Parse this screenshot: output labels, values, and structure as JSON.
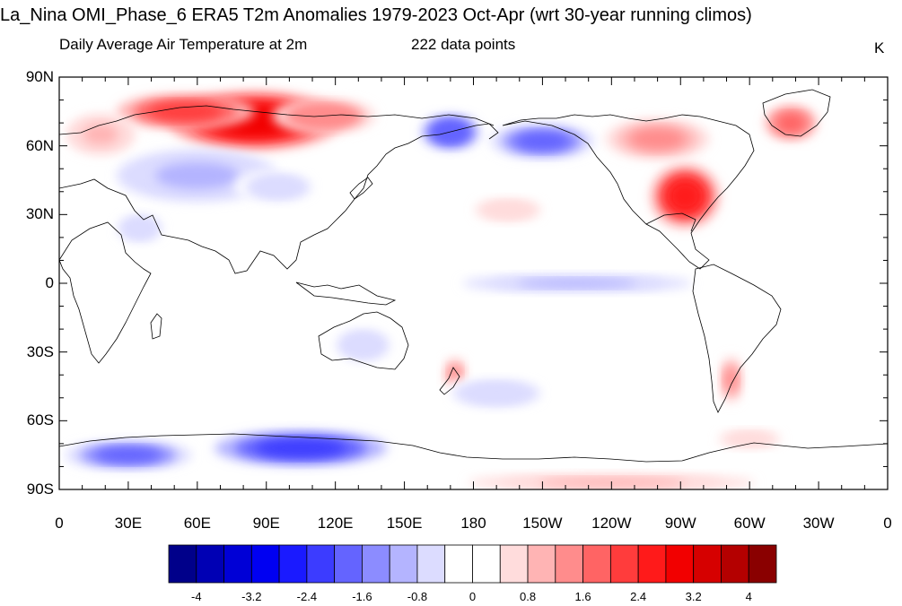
{
  "title": "La_Nina OMI_Phase_6 ERA5 T2m Anomalies 1979-2023 Oct-Apr (wrt 30-year running climos)",
  "subtitle_left": "Daily Average Air Temperature at 2m",
  "subtitle_center": "222 data points",
  "units": "K",
  "lat_ticks": [
    {
      "lat": 90,
      "label": "90N"
    },
    {
      "lat": 60,
      "label": "60N"
    },
    {
      "lat": 30,
      "label": "30N"
    },
    {
      "lat": 0,
      "label": "0"
    },
    {
      "lat": -30,
      "label": "30S"
    },
    {
      "lat": -60,
      "label": "60S"
    },
    {
      "lat": -90,
      "label": "90S"
    }
  ],
  "lon_ticks": [
    {
      "lon": 0,
      "label": "0"
    },
    {
      "lon": 30,
      "label": "30E"
    },
    {
      "lon": 60,
      "label": "60E"
    },
    {
      "lon": 90,
      "label": "90E"
    },
    {
      "lon": 120,
      "label": "120E"
    },
    {
      "lon": 150,
      "label": "150E"
    },
    {
      "lon": 180,
      "label": "180"
    },
    {
      "lon": 210,
      "label": "150W"
    },
    {
      "lon": 240,
      "label": "120W"
    },
    {
      "lon": 270,
      "label": "90W"
    },
    {
      "lon": 300,
      "label": "60W"
    },
    {
      "lon": 330,
      "label": "30W"
    },
    {
      "lon": 360,
      "label": "0"
    }
  ],
  "colorbar": {
    "colors": [
      "#00008a",
      "#0000b4",
      "#0000d6",
      "#0000f2",
      "#1a1aff",
      "#3c3cff",
      "#6464ff",
      "#8c8cff",
      "#b4b4ff",
      "#dcdcff",
      "#ffffff",
      "#ffffff",
      "#ffdcdc",
      "#ffb4b4",
      "#ff8c8c",
      "#ff6464",
      "#ff3c3c",
      "#ff1a1a",
      "#f20000",
      "#d60000",
      "#b40000",
      "#8a0000"
    ],
    "labels": [
      "-4",
      "-3.2",
      "-2.4",
      "-1.6",
      "-0.8",
      "0",
      "0.8",
      "1.6",
      "2.4",
      "3.2",
      "4"
    ]
  },
  "anomalies": [
    {
      "name": "Siberia warm",
      "lon": 85,
      "lat": 71,
      "rx": 30,
      "ry": 10,
      "value": 3.0
    },
    {
      "name": "Arctic Russia warm",
      "lon": 55,
      "lat": 75,
      "rx": 24,
      "ry": 6,
      "value": 2.2
    },
    {
      "name": "East Siberia warm",
      "lon": 115,
      "lat": 73,
      "rx": 18,
      "ry": 6,
      "value": 1.6
    },
    {
      "name": "Scandinavia warm",
      "lon": 18,
      "lat": 65,
      "rx": 12,
      "ry": 7,
      "value": 1.0
    },
    {
      "name": "Kazakhstan cool",
      "lon": 60,
      "lat": 47,
      "rx": 28,
      "ry": 9,
      "value": -1.0
    },
    {
      "name": "Central Asia cool",
      "lon": 95,
      "lat": 42,
      "rx": 15,
      "ry": 6,
      "value": -0.8
    },
    {
      "name": "Arabia cool",
      "lon": 35,
      "lat": 24,
      "rx": 10,
      "ry": 6,
      "value": -0.8
    },
    {
      "name": "Bering cool",
      "lon": 170,
      "lat": 66,
      "rx": 10,
      "ry": 6,
      "value": -2.0
    },
    {
      "name": "Alaska cool",
      "lon": 210,
      "lat": 62,
      "rx": 18,
      "ry": 6,
      "value": -1.6
    },
    {
      "name": "Eastern US warm",
      "lon": 272,
      "lat": 38,
      "rx": 12,
      "ry": 11,
      "value": 2.5
    },
    {
      "name": "Canada warm",
      "lon": 260,
      "lat": 63,
      "rx": 18,
      "ry": 7,
      "value": 1.2
    },
    {
      "name": "Greenland warm",
      "lon": 318,
      "lat": 70,
      "rx": 9,
      "ry": 6,
      "value": 1.8
    },
    {
      "name": "Equatorial Pacific cool",
      "lon": 225,
      "lat": 0,
      "rx": 40,
      "ry": 3,
      "value": -0.9
    },
    {
      "name": "Subtropical Pacific warm",
      "lon": 195,
      "lat": 32,
      "rx": 15,
      "ry": 5,
      "value": 0.8
    },
    {
      "name": "Australia cool",
      "lon": 132,
      "lat": -27,
      "rx": 12,
      "ry": 7,
      "value": -0.7
    },
    {
      "name": "New Zealand warm",
      "lon": 172,
      "lat": -40,
      "rx": 4,
      "ry": 6,
      "value": 1.2
    },
    {
      "name": "Patagonia warm",
      "lon": 292,
      "lat": -42,
      "rx": 4,
      "ry": 8,
      "value": 1.4
    },
    {
      "name": "South Pacific cool",
      "lon": 190,
      "lat": -48,
      "rx": 20,
      "ry": 6,
      "value": -0.6
    },
    {
      "name": "East Antarctica cool",
      "lon": 105,
      "lat": -72,
      "rx": 30,
      "ry": 6,
      "value": -2.2
    },
    {
      "name": "Queen Maud Land cool",
      "lon": 30,
      "lat": -75,
      "rx": 22,
      "ry": 5,
      "value": -1.6
    },
    {
      "name": "Southern Ocean warm",
      "lon": 240,
      "lat": -87,
      "rx": 50,
      "ry": 3,
      "value": 0.9
    },
    {
      "name": "Weddell warm",
      "lon": 300,
      "lat": -68,
      "rx": 14,
      "ry": 4,
      "value": 0.8
    }
  ]
}
